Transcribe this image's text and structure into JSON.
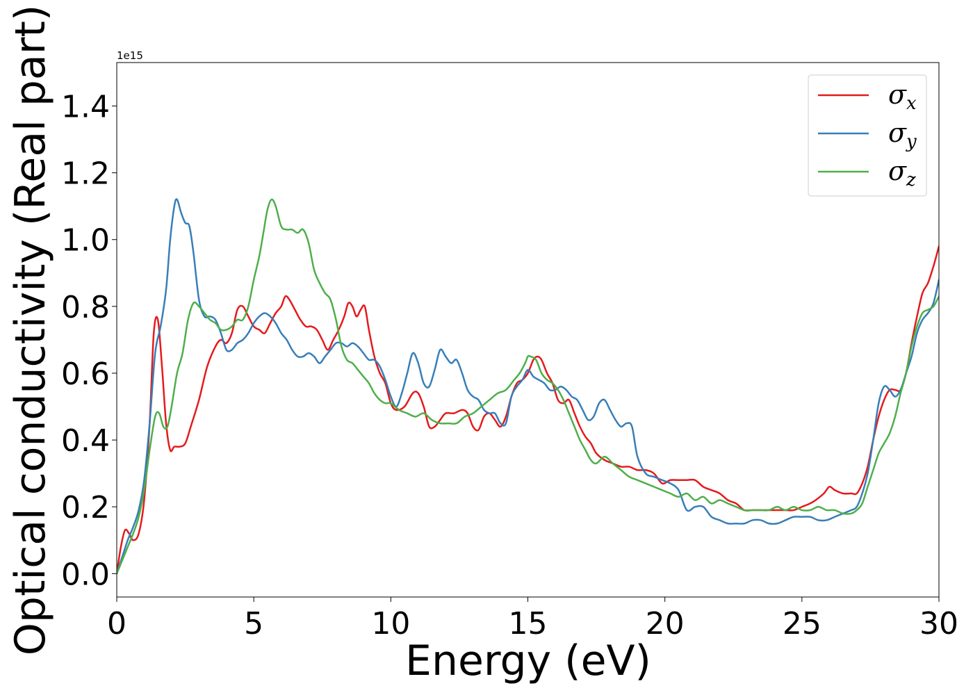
{
  "chart_data": {
    "type": "line",
    "xlabel": "Energy (eV)",
    "ylabel": "Optical conductivity (Real part)",
    "y_offset_text": "1e15",
    "y_scale_multiplier": 1000000000000000.0,
    "xlim": [
      0,
      30
    ],
    "ylim": [
      -0.07,
      1.53
    ],
    "xticks": [
      0,
      5,
      10,
      15,
      20,
      25,
      30
    ],
    "yticks": [
      0.0,
      0.2,
      0.4,
      0.6,
      0.8,
      1.0,
      1.2,
      1.4
    ],
    "ytick_labels": [
      "0.0",
      "0.2",
      "0.4",
      "0.6",
      "0.8",
      "1.0",
      "1.2",
      "1.4"
    ],
    "grid": false,
    "legend_position": "top-right",
    "series": [
      {
        "name": "σ_x",
        "legend_base": "σ",
        "legend_sub": "x",
        "color": "#e41a1c",
        "x": [
          0,
          0.15,
          0.3,
          0.45,
          0.6,
          0.8,
          1.0,
          1.2,
          1.35,
          1.5,
          1.65,
          1.8,
          1.95,
          2.1,
          2.3,
          2.5,
          2.7,
          3.0,
          3.3,
          3.6,
          3.8,
          4.0,
          4.2,
          4.4,
          4.6,
          4.8,
          5.0,
          5.2,
          5.4,
          5.6,
          5.8,
          6.0,
          6.15,
          6.3,
          6.5,
          6.7,
          6.9,
          7.1,
          7.3,
          7.5,
          7.7,
          7.9,
          8.1,
          8.3,
          8.45,
          8.6,
          8.75,
          8.9,
          9.05,
          9.2,
          9.4,
          9.6,
          9.8,
          10.0,
          10.2,
          10.5,
          10.8,
          11.0,
          11.2,
          11.4,
          11.6,
          11.8,
          12.0,
          12.3,
          12.6,
          12.8,
          13.0,
          13.2,
          13.4,
          13.6,
          13.8,
          14.0,
          14.2,
          14.4,
          14.6,
          14.8,
          15.0,
          15.2,
          15.35,
          15.5,
          15.7,
          15.9,
          16.1,
          16.3,
          16.5,
          16.7,
          16.9,
          17.1,
          17.3,
          17.5,
          17.8,
          18.1,
          18.4,
          18.7,
          19.0,
          19.3,
          19.6,
          19.9,
          20.2,
          20.5,
          20.8,
          21.1,
          21.4,
          21.7,
          22.0,
          22.3,
          22.6,
          22.9,
          23.2,
          23.5,
          23.8,
          24.1,
          24.4,
          24.7,
          25.0,
          25.3,
          25.5,
          25.8,
          26.0,
          26.2,
          26.5,
          26.8,
          27.0,
          27.2,
          27.4,
          27.6,
          27.8,
          28.0,
          28.2,
          28.4,
          28.6,
          28.8,
          29.0,
          29.2,
          29.4,
          29.6,
          29.8,
          30.0
        ],
        "y": [
          0.0,
          0.08,
          0.13,
          0.12,
          0.1,
          0.12,
          0.22,
          0.45,
          0.72,
          0.76,
          0.62,
          0.45,
          0.37,
          0.38,
          0.38,
          0.39,
          0.44,
          0.52,
          0.62,
          0.68,
          0.7,
          0.69,
          0.72,
          0.79,
          0.8,
          0.77,
          0.74,
          0.73,
          0.72,
          0.75,
          0.78,
          0.8,
          0.83,
          0.82,
          0.79,
          0.76,
          0.74,
          0.74,
          0.73,
          0.7,
          0.67,
          0.7,
          0.73,
          0.77,
          0.81,
          0.8,
          0.77,
          0.79,
          0.8,
          0.73,
          0.65,
          0.6,
          0.57,
          0.51,
          0.49,
          0.5,
          0.54,
          0.54,
          0.5,
          0.44,
          0.44,
          0.46,
          0.48,
          0.48,
          0.49,
          0.48,
          0.44,
          0.43,
          0.47,
          0.48,
          0.46,
          0.44,
          0.47,
          0.53,
          0.57,
          0.58,
          0.6,
          0.64,
          0.65,
          0.64,
          0.6,
          0.57,
          0.52,
          0.51,
          0.52,
          0.48,
          0.44,
          0.41,
          0.39,
          0.36,
          0.34,
          0.33,
          0.32,
          0.32,
          0.31,
          0.31,
          0.3,
          0.27,
          0.28,
          0.28,
          0.28,
          0.28,
          0.26,
          0.25,
          0.24,
          0.22,
          0.21,
          0.19,
          0.19,
          0.19,
          0.19,
          0.19,
          0.19,
          0.19,
          0.2,
          0.21,
          0.22,
          0.24,
          0.26,
          0.25,
          0.24,
          0.24,
          0.24,
          0.27,
          0.32,
          0.4,
          0.47,
          0.52,
          0.55,
          0.55,
          0.55,
          0.6,
          0.69,
          0.77,
          0.84,
          0.87,
          0.92,
          0.98
        ]
      },
      {
        "name": "σ_y",
        "legend_base": "σ",
        "legend_sub": "y",
        "color": "#377eb8",
        "x": [
          0,
          0.2,
          0.4,
          0.6,
          0.8,
          1.0,
          1.2,
          1.4,
          1.6,
          1.8,
          1.95,
          2.1,
          2.2,
          2.35,
          2.5,
          2.65,
          2.8,
          3.0,
          3.2,
          3.4,
          3.6,
          3.8,
          4.0,
          4.2,
          4.4,
          4.6,
          4.8,
          5.0,
          5.2,
          5.4,
          5.6,
          5.8,
          6.0,
          6.2,
          6.4,
          6.6,
          6.8,
          7.0,
          7.2,
          7.4,
          7.6,
          7.8,
          8.0,
          8.2,
          8.4,
          8.6,
          8.8,
          9.0,
          9.2,
          9.4,
          9.6,
          9.8,
          10.0,
          10.2,
          10.4,
          10.6,
          10.8,
          11.0,
          11.2,
          11.4,
          11.6,
          11.8,
          12.0,
          12.2,
          12.4,
          12.6,
          12.8,
          13.0,
          13.2,
          13.4,
          13.6,
          13.8,
          14.0,
          14.2,
          14.4,
          14.6,
          14.8,
          15.0,
          15.2,
          15.4,
          15.6,
          15.8,
          16.0,
          16.2,
          16.4,
          16.6,
          16.8,
          17.0,
          17.2,
          17.4,
          17.6,
          17.8,
          18.0,
          18.2,
          18.4,
          18.6,
          18.8,
          19.0,
          19.3,
          19.6,
          19.9,
          20.2,
          20.5,
          20.8,
          21.1,
          21.4,
          21.7,
          22.0,
          22.3,
          22.6,
          22.9,
          23.2,
          23.5,
          23.8,
          24.1,
          24.4,
          24.7,
          25.0,
          25.3,
          25.6,
          25.9,
          26.2,
          26.5,
          26.8,
          27.0,
          27.2,
          27.4,
          27.6,
          27.8,
          28.0,
          28.2,
          28.4,
          28.6,
          28.8,
          29.0,
          29.2,
          29.4,
          29.6,
          29.8,
          30.0
        ],
        "y": [
          0.0,
          0.05,
          0.1,
          0.14,
          0.19,
          0.28,
          0.45,
          0.66,
          0.74,
          0.85,
          1.0,
          1.1,
          1.12,
          1.08,
          1.05,
          1.04,
          0.96,
          0.82,
          0.77,
          0.77,
          0.76,
          0.72,
          0.67,
          0.67,
          0.69,
          0.7,
          0.72,
          0.75,
          0.77,
          0.78,
          0.77,
          0.75,
          0.72,
          0.7,
          0.67,
          0.65,
          0.65,
          0.66,
          0.65,
          0.63,
          0.65,
          0.67,
          0.69,
          0.69,
          0.68,
          0.69,
          0.68,
          0.66,
          0.64,
          0.64,
          0.62,
          0.58,
          0.53,
          0.5,
          0.54,
          0.6,
          0.66,
          0.63,
          0.57,
          0.56,
          0.61,
          0.67,
          0.65,
          0.63,
          0.64,
          0.6,
          0.55,
          0.53,
          0.52,
          0.49,
          0.48,
          0.48,
          0.45,
          0.45,
          0.53,
          0.56,
          0.58,
          0.61,
          0.59,
          0.58,
          0.57,
          0.55,
          0.55,
          0.56,
          0.55,
          0.53,
          0.52,
          0.49,
          0.46,
          0.47,
          0.51,
          0.52,
          0.49,
          0.46,
          0.44,
          0.45,
          0.44,
          0.35,
          0.3,
          0.29,
          0.28,
          0.27,
          0.25,
          0.19,
          0.2,
          0.2,
          0.17,
          0.16,
          0.15,
          0.15,
          0.15,
          0.16,
          0.16,
          0.15,
          0.15,
          0.16,
          0.17,
          0.17,
          0.17,
          0.16,
          0.16,
          0.17,
          0.18,
          0.19,
          0.2,
          0.24,
          0.3,
          0.4,
          0.51,
          0.56,
          0.55,
          0.53,
          0.55,
          0.6,
          0.65,
          0.72,
          0.76,
          0.78,
          0.81,
          0.88
        ]
      },
      {
        "name": "σ_z",
        "legend_base": "σ",
        "legend_sub": "z",
        "color": "#4daf4a",
        "x": [
          0,
          0.2,
          0.4,
          0.6,
          0.8,
          1.0,
          1.2,
          1.4,
          1.55,
          1.7,
          1.85,
          2.0,
          2.2,
          2.4,
          2.6,
          2.8,
          3.0,
          3.2,
          3.4,
          3.6,
          3.8,
          4.0,
          4.2,
          4.4,
          4.6,
          4.8,
          5.0,
          5.2,
          5.35,
          5.5,
          5.65,
          5.8,
          6.0,
          6.2,
          6.4,
          6.6,
          6.8,
          7.0,
          7.2,
          7.4,
          7.6,
          7.8,
          8.0,
          8.2,
          8.4,
          8.6,
          8.8,
          9.0,
          9.2,
          9.4,
          9.6,
          9.8,
          10.0,
          10.3,
          10.6,
          10.9,
          11.2,
          11.5,
          11.8,
          12.1,
          12.4,
          12.7,
          13.0,
          13.3,
          13.6,
          13.9,
          14.2,
          14.5,
          14.7,
          14.9,
          15.0,
          15.1,
          15.3,
          15.5,
          15.7,
          15.9,
          16.1,
          16.3,
          16.5,
          16.7,
          16.9,
          17.1,
          17.3,
          17.5,
          17.8,
          18.1,
          18.4,
          18.7,
          19.0,
          19.3,
          19.6,
          19.9,
          20.2,
          20.5,
          20.8,
          21.1,
          21.4,
          21.7,
          22.0,
          22.3,
          22.6,
          22.9,
          23.2,
          23.5,
          23.8,
          24.1,
          24.4,
          24.7,
          25.0,
          25.3,
          25.6,
          25.9,
          26.2,
          26.5,
          26.8,
          27.0,
          27.2,
          27.4,
          27.6,
          27.8,
          28.0,
          28.2,
          28.4,
          28.6,
          28.8,
          29.0,
          29.2,
          29.4,
          29.6,
          29.8,
          30.0
        ],
        "y": [
          0.0,
          0.04,
          0.08,
          0.12,
          0.17,
          0.25,
          0.37,
          0.47,
          0.48,
          0.44,
          0.44,
          0.5,
          0.6,
          0.66,
          0.76,
          0.81,
          0.8,
          0.78,
          0.76,
          0.75,
          0.73,
          0.73,
          0.74,
          0.76,
          0.76,
          0.8,
          0.88,
          0.95,
          1.02,
          1.09,
          1.12,
          1.1,
          1.04,
          1.03,
          1.03,
          1.02,
          1.03,
          0.99,
          0.91,
          0.87,
          0.84,
          0.82,
          0.76,
          0.68,
          0.64,
          0.63,
          0.61,
          0.59,
          0.57,
          0.54,
          0.52,
          0.51,
          0.51,
          0.49,
          0.48,
          0.47,
          0.48,
          0.46,
          0.45,
          0.45,
          0.45,
          0.47,
          0.48,
          0.5,
          0.52,
          0.54,
          0.55,
          0.58,
          0.6,
          0.63,
          0.65,
          0.65,
          0.64,
          0.6,
          0.58,
          0.57,
          0.55,
          0.52,
          0.48,
          0.44,
          0.4,
          0.37,
          0.34,
          0.33,
          0.35,
          0.33,
          0.31,
          0.29,
          0.28,
          0.27,
          0.26,
          0.25,
          0.24,
          0.23,
          0.24,
          0.22,
          0.23,
          0.21,
          0.22,
          0.21,
          0.2,
          0.19,
          0.19,
          0.19,
          0.19,
          0.2,
          0.19,
          0.2,
          0.19,
          0.19,
          0.2,
          0.19,
          0.19,
          0.18,
          0.18,
          0.19,
          0.21,
          0.26,
          0.31,
          0.36,
          0.39,
          0.42,
          0.47,
          0.54,
          0.6,
          0.68,
          0.74,
          0.78,
          0.79,
          0.8,
          0.83
        ]
      }
    ]
  }
}
